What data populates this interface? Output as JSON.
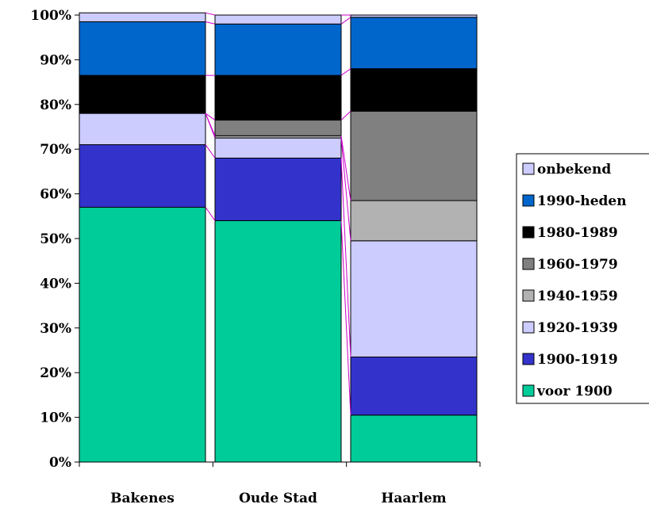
{
  "chart_data": {
    "type": "bar",
    "stacked": true,
    "percent": true,
    "categories": [
      "Bakenes",
      "Oude Stad",
      "Haarlem"
    ],
    "series": [
      {
        "name": "voor 1900",
        "color": "#00cc99",
        "values": [
          57,
          54,
          10.5
        ]
      },
      {
        "name": "1900-1919",
        "color": "#3333cc",
        "values": [
          14,
          14,
          13
        ]
      },
      {
        "name": "1920-1939",
        "color": "#ccccff",
        "values": [
          7,
          4.5,
          26
        ]
      },
      {
        "name": "1940-1959",
        "color": "#b2b2b2",
        "values": [
          0,
          0.5,
          9
        ]
      },
      {
        "name": "1960-1979",
        "color": "#808080",
        "values": [
          0,
          3.5,
          20
        ]
      },
      {
        "name": "1980-1989",
        "color": "#000000",
        "values": [
          8.5,
          10,
          9.5
        ]
      },
      {
        "name": "1990-heden",
        "color": "#0066cc",
        "values": [
          12,
          11.5,
          11.5
        ]
      },
      {
        "name": "onbekend",
        "color": "#ccccff",
        "values": [
          2,
          2,
          0.5
        ]
      }
    ],
    "y_ticks": [
      "0%",
      "10%",
      "20%",
      "30%",
      "40%",
      "50%",
      "60%",
      "70%",
      "80%",
      "90%",
      "100%"
    ],
    "ylim": [
      0,
      100
    ],
    "series_lines_color": "#cc00cc",
    "legend_position": "right",
    "title": "",
    "xlabel": "",
    "ylabel": ""
  }
}
